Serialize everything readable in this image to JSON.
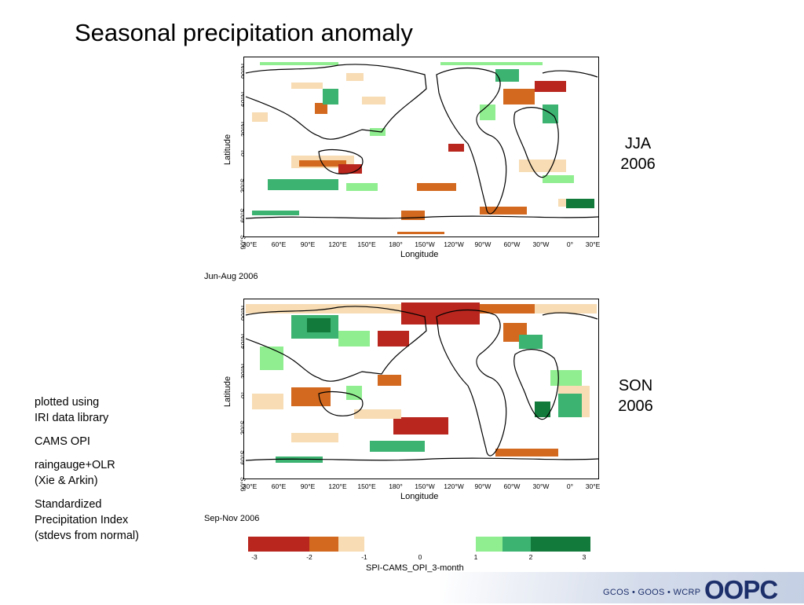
{
  "slide": {
    "title": "Seasonal precipitation anomaly"
  },
  "maps": [
    {
      "period_label": "Jun-Aug 2006",
      "season": "JJA",
      "year": "2006",
      "y_axis_title": "Latitude",
      "x_axis_title": "Longitude",
      "y_ticks": [
        "90°N",
        "60°N",
        "30°N",
        "0°",
        "30°S",
        "60°S",
        "90°S"
      ],
      "x_ticks": [
        "30°E",
        "60°E",
        "90°E",
        "120°E",
        "150°E",
        "180°",
        "150°W",
        "120°W",
        "90°W",
        "60°W",
        "30°W",
        "0°",
        "30°E"
      ]
    },
    {
      "period_label": "Sep-Nov 2006",
      "season": "SON",
      "year": "2006",
      "y_axis_title": "Latitude",
      "x_axis_title": "Longitude",
      "y_ticks": [
        "90°N",
        "60°N",
        "30°N",
        "0°",
        "30°S",
        "60°S",
        "90°S"
      ],
      "x_ticks": [
        "30°E",
        "60°E",
        "90°E",
        "120°E",
        "150°E",
        "180°",
        "150°W",
        "120°W",
        "90°W",
        "60°W",
        "30°W",
        "0°",
        "30°E"
      ]
    }
  ],
  "notes": {
    "line1a": "plotted using",
    "line1b": "IRI data library",
    "line2": "CAMS OPI",
    "line3a": "raingauge+OLR",
    "line3b": "(Xie & Arkin)",
    "line4a": "Standardized",
    "line4b": "Precipitation Index",
    "line4c": "(stdevs from normal)"
  },
  "colorbar": {
    "title": "SPI-CAMS_OPI_3-month",
    "ticks": [
      "-3",
      "-2",
      "-1",
      "0",
      "1",
      "2",
      "3"
    ],
    "colors": {
      "very_dry": "#b8261e",
      "dry": "#d2691e",
      "slightly_dry": "#f7dcb4",
      "slightly_wet": "#90ee90",
      "wet": "#3cb371",
      "very_wet": "#127a3a"
    }
  },
  "footer": {
    "programs": "GCOS • GOOS • WCRP",
    "logo": "OOPC"
  }
}
